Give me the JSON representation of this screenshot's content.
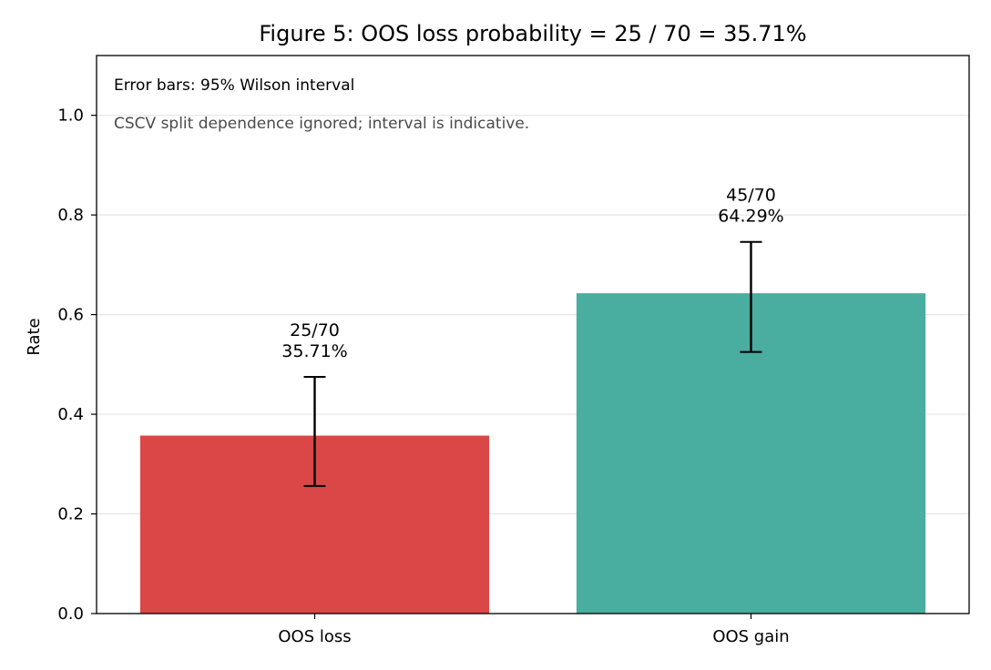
{
  "chart_data": {
    "type": "bar",
    "title": "Figure 5: OOS loss probability = 25 / 70 = 35.71%",
    "xlabel": "",
    "ylabel": "Rate",
    "ylim": [
      0,
      1.12
    ],
    "yticks": [
      0.0,
      0.2,
      0.4,
      0.6,
      0.8,
      1.0
    ],
    "ytick_labels": [
      "0.0",
      "0.2",
      "0.4",
      "0.6",
      "0.8",
      "1.0"
    ],
    "grid": "horizontal",
    "categories": [
      "OOS loss",
      "OOS gain"
    ],
    "values": [
      0.3571,
      0.6429
    ],
    "error_bars": [
      {
        "low": 0.256,
        "high": 0.475
      },
      {
        "low": 0.525,
        "high": 0.746
      }
    ],
    "bar_labels": [
      {
        "count": "25/70",
        "percent": "35.71%"
      },
      {
        "count": "45/70",
        "percent": "64.29%"
      }
    ],
    "colors": [
      "#db4646",
      "#49ad9f"
    ],
    "annotations": [
      "Error bars: 95% Wilson interval",
      "CSCV split dependence ignored; interval is indicative."
    ]
  }
}
